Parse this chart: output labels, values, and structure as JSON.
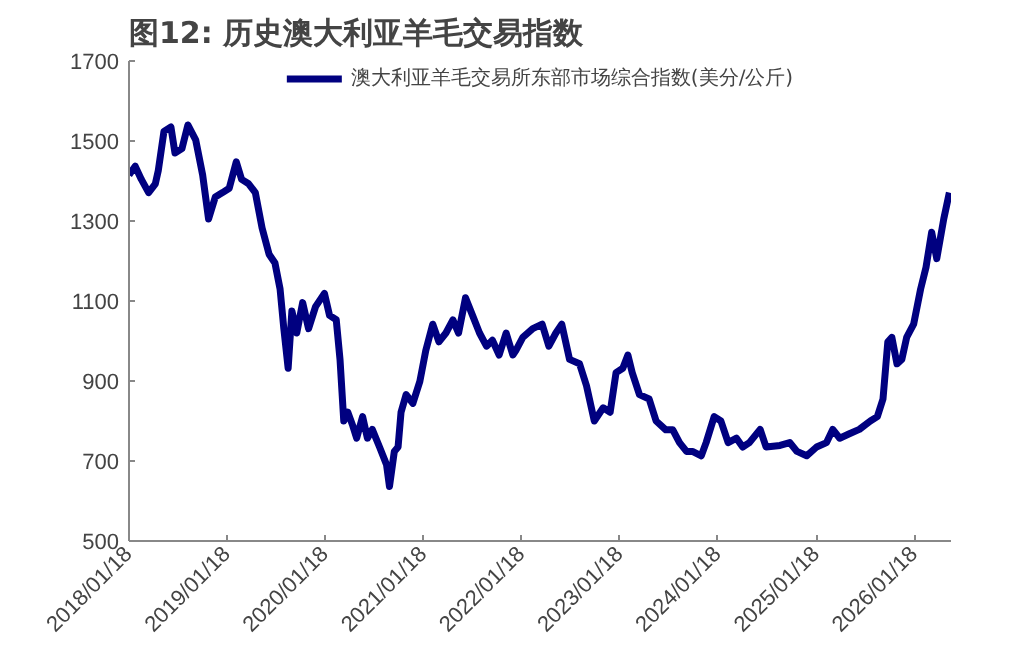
{
  "chart_data": {
    "type": "line",
    "title": "图12:  历史澳大利亚羊毛交易指数",
    "x": [
      "2018-01-18",
      "2018-02-10",
      "2018-03-05",
      "2018-04-01",
      "2018-04-26",
      "2018-05-07",
      "2018-05-28",
      "2018-06-23",
      "2018-07-08",
      "2018-08-03",
      "2018-08-25",
      "2018-09-23",
      "2018-10-19",
      "2018-11-10",
      "2018-12-05",
      "2019-01-01",
      "2019-01-26",
      "2019-02-21",
      "2019-03-13",
      "2019-04-08",
      "2019-05-03",
      "2019-05-28",
      "2019-06-23",
      "2019-07-15",
      "2019-08-03",
      "2019-08-17",
      "2019-09-02",
      "2019-09-16",
      "2019-10-04",
      "2019-10-26",
      "2019-11-17",
      "2019-12-13",
      "2020-01-15",
      "2020-02-03",
      "2020-02-28",
      "2020-03-13",
      "2020-03-27",
      "2020-04-11",
      "2020-04-29",
      "2020-05-14",
      "2020-06-05",
      "2020-06-23",
      "2020-07-11",
      "2020-08-07",
      "2020-09-02",
      "2020-09-13",
      "2020-10-01",
      "2020-10-15",
      "2020-10-26",
      "2020-11-14",
      "2020-12-09",
      "2021-01-04",
      "2021-01-26",
      "2021-02-21",
      "2021-03-16",
      "2021-04-11",
      "2021-05-07",
      "2021-05-28",
      "2021-06-23",
      "2021-07-19",
      "2021-08-14",
      "2021-09-09",
      "2021-10-01",
      "2021-10-26",
      "2021-11-21",
      "2021-12-16",
      "2021-12-27",
      "2022-01-22",
      "2022-02-28",
      "2022-04-04",
      "2022-04-29",
      "2022-05-25",
      "2022-06-16",
      "2022-07-15",
      "2022-08-21",
      "2022-09-16",
      "2022-10-15",
      "2022-11-17",
      "2022-12-13",
      "2023-01-04",
      "2023-01-29",
      "2023-02-17",
      "2023-03-05",
      "2023-04-01",
      "2023-05-07",
      "2023-06-02",
      "2023-07-08",
      "2023-08-03",
      "2023-08-28",
      "2023-09-23",
      "2023-10-15",
      "2023-11-17",
      "2023-12-05",
      "2024-01-04",
      "2024-01-29",
      "2024-02-25",
      "2024-03-27",
      "2024-04-19",
      "2024-05-14",
      "2024-06-23",
      "2024-07-15",
      "2024-09-05",
      "2024-10-11",
      "2024-11-07",
      "2024-12-13",
      "2025-01-19",
      "2025-02-25",
      "2025-03-20",
      "2025-04-15",
      "2025-05-21",
      "2025-06-27",
      "2025-08-07",
      "2025-09-02",
      "2025-09-23",
      "2025-10-11",
      "2025-10-26",
      "2025-11-14",
      "2025-12-02",
      "2025-12-20",
      "2026-01-15",
      "2026-02-10",
      "2026-03-02",
      "2026-03-23",
      "2026-04-11",
      "2026-05-07",
      "2026-05-28"
    ],
    "series": [
      {
        "name": "澳大利亚羊毛交易所东部市场综合指数(美分/公斤)",
        "color": "#000080",
        "values": [
          1415,
          1437,
          1404,
          1371,
          1393,
          1426,
          1524,
          1535,
          1470,
          1481,
          1540,
          1503,
          1415,
          1305,
          1360,
          1371,
          1382,
          1448,
          1404,
          1393,
          1371,
          1283,
          1217,
          1195,
          1130,
          1031,
          932,
          1075,
          1020,
          1096,
          1031,
          1086,
          1119,
          1064,
          1053,
          954,
          800,
          822,
          789,
          757,
          811,
          757,
          779,
          735,
          691,
          636,
          724,
          735,
          822,
          866,
          844,
          899,
          976,
          1042,
          998,
          1020,
          1053,
          1020,
          1108,
          1064,
          1020,
          987,
          1002,
          965,
          1020,
          965,
          976,
          1009,
          1031,
          1042,
          987,
          1020,
          1042,
          954,
          943,
          888,
          800,
          833,
          822,
          921,
          932,
          965,
          921,
          866,
          855,
          800,
          778,
          778,
          746,
          724,
          724,
          713,
          746,
          811,
          800,
          746,
          757,
          735,
          746,
          779,
          735,
          739,
          746,
          724,
          713,
          735,
          746,
          779,
          757,
          768,
          779,
          800,
          811,
          855,
          998,
          1009,
          943,
          954,
          1009,
          1042,
          1130,
          1184,
          1272,
          1206,
          1305,
          1371
        ]
      }
    ],
    "xlim": [
      "2018-01-18",
      "2026-06-03"
    ],
    "xticks": [
      {
        "value": "2018-01-18",
        "label": "2018/01/18"
      },
      {
        "value": "2019-01-18",
        "label": "2019/01/18"
      },
      {
        "value": "2020-01-18",
        "label": "2020/01/18"
      },
      {
        "value": "2021-01-18",
        "label": "2021/01/18"
      },
      {
        "value": "2022-01-18",
        "label": "2022/01/18"
      },
      {
        "value": "2023-01-18",
        "label": "2023/01/18"
      },
      {
        "value": "2024-01-18",
        "label": "2024/01/18"
      },
      {
        "value": "2025-01-18",
        "label": "2025/01/18"
      },
      {
        "value": "2026-01-18",
        "label": "2026/01/18"
      }
    ],
    "ylim": [
      500,
      1700
    ],
    "yticks": [
      500,
      700,
      900,
      1100,
      1300,
      1500,
      1700
    ],
    "grid": false,
    "legend": "top",
    "marker": "none",
    "line_style": "solid"
  }
}
